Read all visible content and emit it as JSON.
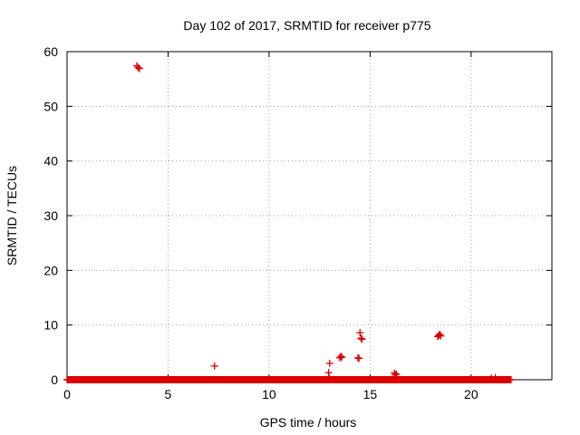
{
  "chart_data": {
    "type": "scatter",
    "title": "Day 102 of 2017, SRMTID for receiver p775",
    "xlabel": "GPS time / hours",
    "ylabel": "SRMTID / TECUs",
    "xlim": [
      0,
      24
    ],
    "ylim": [
      0,
      60
    ],
    "xticks": [
      0,
      5,
      10,
      15,
      20
    ],
    "yticks": [
      0,
      10,
      20,
      30,
      40,
      50,
      60
    ],
    "grid": true,
    "marker": "+",
    "color": "#dd0000",
    "baseline": {
      "y": 0.0,
      "x_start": 0.0,
      "x_end": 22.0,
      "step_hours": 0.0333
    },
    "points": [
      {
        "x": 3.45,
        "y": 57.4
      },
      {
        "x": 3.52,
        "y": 57.1
      },
      {
        "x": 3.58,
        "y": 56.9
      },
      {
        "x": 7.3,
        "y": 2.5
      },
      {
        "x": 12.95,
        "y": 1.3
      },
      {
        "x": 12.97,
        "y": 0.4
      },
      {
        "x": 13.0,
        "y": 3.0
      },
      {
        "x": 13.5,
        "y": 4.0
      },
      {
        "x": 13.55,
        "y": 4.3
      },
      {
        "x": 13.6,
        "y": 4.1
      },
      {
        "x": 14.4,
        "y": 4.0
      },
      {
        "x": 14.45,
        "y": 3.9
      },
      {
        "x": 14.5,
        "y": 8.6
      },
      {
        "x": 14.55,
        "y": 7.6
      },
      {
        "x": 14.6,
        "y": 7.4
      },
      {
        "x": 16.2,
        "y": 1.2
      },
      {
        "x": 16.25,
        "y": 0.9
      },
      {
        "x": 16.3,
        "y": 1.0
      },
      {
        "x": 18.35,
        "y": 7.9
      },
      {
        "x": 18.4,
        "y": 8.1
      },
      {
        "x": 18.45,
        "y": 8.3
      },
      {
        "x": 18.5,
        "y": 8.0
      },
      {
        "x": 21.0,
        "y": 0.3
      },
      {
        "x": 21.2,
        "y": 0.4
      }
    ]
  }
}
